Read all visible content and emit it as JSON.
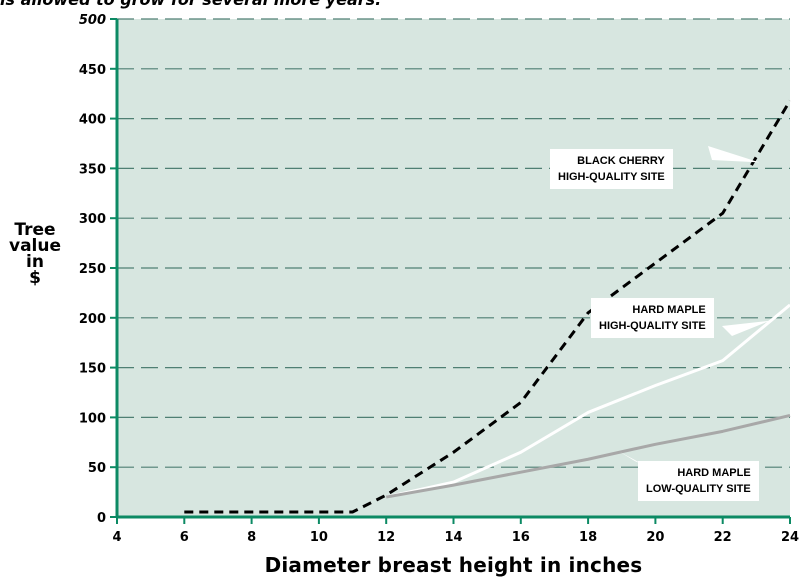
{
  "caption": "is allowed to grow for several more years.",
  "chart_data": {
    "type": "line",
    "xlabel": "Diameter breast height in inches",
    "ylabel_lines": [
      "Tree",
      "value",
      "in",
      "$"
    ],
    "xlim": [
      4,
      24
    ],
    "ylim": [
      0,
      500
    ],
    "xticks": [
      4,
      6,
      8,
      10,
      12,
      14,
      16,
      18,
      20,
      22,
      24
    ],
    "yticks": [
      0,
      50,
      100,
      150,
      200,
      250,
      300,
      350,
      400,
      450,
      500
    ],
    "grid": true,
    "series": [
      {
        "name": "BLACK CHERRY HIGH-QUALITY SITE",
        "label_lines": [
          "BLACK CHERRY",
          "HIGH-QUALITY SITE"
        ],
        "style": "dashed",
        "color": "#000000",
        "x": [
          6,
          8,
          10,
          11,
          12,
          14,
          16,
          18,
          20,
          22,
          24
        ],
        "y": [
          5,
          5,
          5,
          5,
          22,
          65,
          115,
          205,
          255,
          305,
          418
        ]
      },
      {
        "name": "HARD MAPLE HIGH-QUALITY SITE",
        "label_lines": [
          "HARD MAPLE",
          "HIGH-QUALITY SITE"
        ],
        "style": "solid",
        "color": "#ffffff",
        "x": [
          12,
          14,
          16,
          18,
          20,
          22,
          24
        ],
        "y": [
          20,
          35,
          65,
          105,
          132,
          157,
          213
        ]
      },
      {
        "name": "HARD MAPLE LOW-QUALITY SITE",
        "label_lines": [
          "HARD MAPLE",
          "LOW-QUALITY SITE"
        ],
        "style": "solid",
        "color": "#a8a8a8",
        "x": [
          12,
          14,
          16,
          18,
          20,
          22,
          24
        ],
        "y": [
          20,
          32,
          45,
          58,
          73,
          86,
          102
        ]
      }
    ]
  },
  "colors": {
    "plot_background": "#d7e6e0",
    "axis": "#0c8a64",
    "grid": "#4f7f73"
  }
}
